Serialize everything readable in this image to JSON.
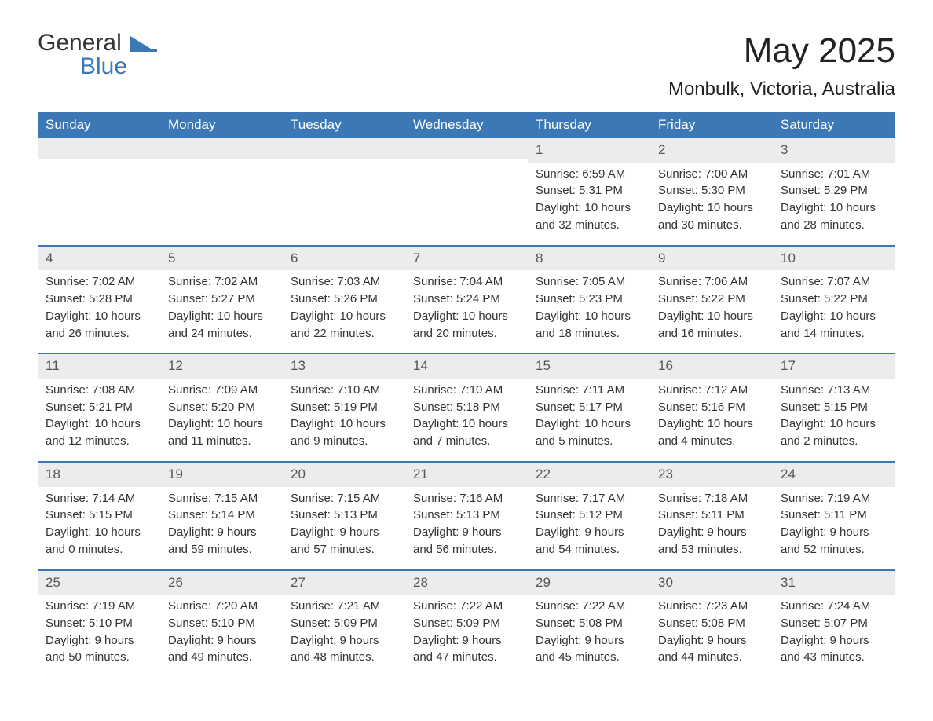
{
  "brand": {
    "word1": "General",
    "word2": "Blue"
  },
  "title": "May 2025",
  "location": "Monbulk, Victoria, Australia",
  "colors": {
    "header_bg": "#3b78b5",
    "header_text": "#ffffff",
    "daynum_bg": "#ececec",
    "text": "#333333",
    "rule": "#3b78b5",
    "page_bg": "#ffffff"
  },
  "typography": {
    "title_fontsize": 44,
    "location_fontsize": 24,
    "dow_fontsize": 17,
    "body_fontsize": 15
  },
  "layout": {
    "columns": 7,
    "rows": 5
  },
  "dow": [
    "Sunday",
    "Monday",
    "Tuesday",
    "Wednesday",
    "Thursday",
    "Friday",
    "Saturday"
  ],
  "labels": {
    "sunrise": "Sunrise:",
    "sunset": "Sunset:",
    "daylight": "Daylight:"
  },
  "weeks": [
    [
      {
        "empty": true
      },
      {
        "empty": true
      },
      {
        "empty": true
      },
      {
        "empty": true
      },
      {
        "n": "1",
        "sunrise": "6:59 AM",
        "sunset": "5:31 PM",
        "daylight": "10 hours and 32 minutes."
      },
      {
        "n": "2",
        "sunrise": "7:00 AM",
        "sunset": "5:30 PM",
        "daylight": "10 hours and 30 minutes."
      },
      {
        "n": "3",
        "sunrise": "7:01 AM",
        "sunset": "5:29 PM",
        "daylight": "10 hours and 28 minutes."
      }
    ],
    [
      {
        "n": "4",
        "sunrise": "7:02 AM",
        "sunset": "5:28 PM",
        "daylight": "10 hours and 26 minutes."
      },
      {
        "n": "5",
        "sunrise": "7:02 AM",
        "sunset": "5:27 PM",
        "daylight": "10 hours and 24 minutes."
      },
      {
        "n": "6",
        "sunrise": "7:03 AM",
        "sunset": "5:26 PM",
        "daylight": "10 hours and 22 minutes."
      },
      {
        "n": "7",
        "sunrise": "7:04 AM",
        "sunset": "5:24 PM",
        "daylight": "10 hours and 20 minutes."
      },
      {
        "n": "8",
        "sunrise": "7:05 AM",
        "sunset": "5:23 PM",
        "daylight": "10 hours and 18 minutes."
      },
      {
        "n": "9",
        "sunrise": "7:06 AM",
        "sunset": "5:22 PM",
        "daylight": "10 hours and 16 minutes."
      },
      {
        "n": "10",
        "sunrise": "7:07 AM",
        "sunset": "5:22 PM",
        "daylight": "10 hours and 14 minutes."
      }
    ],
    [
      {
        "n": "11",
        "sunrise": "7:08 AM",
        "sunset": "5:21 PM",
        "daylight": "10 hours and 12 minutes."
      },
      {
        "n": "12",
        "sunrise": "7:09 AM",
        "sunset": "5:20 PM",
        "daylight": "10 hours and 11 minutes."
      },
      {
        "n": "13",
        "sunrise": "7:10 AM",
        "sunset": "5:19 PM",
        "daylight": "10 hours and 9 minutes."
      },
      {
        "n": "14",
        "sunrise": "7:10 AM",
        "sunset": "5:18 PM",
        "daylight": "10 hours and 7 minutes."
      },
      {
        "n": "15",
        "sunrise": "7:11 AM",
        "sunset": "5:17 PM",
        "daylight": "10 hours and 5 minutes."
      },
      {
        "n": "16",
        "sunrise": "7:12 AM",
        "sunset": "5:16 PM",
        "daylight": "10 hours and 4 minutes."
      },
      {
        "n": "17",
        "sunrise": "7:13 AM",
        "sunset": "5:15 PM",
        "daylight": "10 hours and 2 minutes."
      }
    ],
    [
      {
        "n": "18",
        "sunrise": "7:14 AM",
        "sunset": "5:15 PM",
        "daylight": "10 hours and 0 minutes."
      },
      {
        "n": "19",
        "sunrise": "7:15 AM",
        "sunset": "5:14 PM",
        "daylight": "9 hours and 59 minutes."
      },
      {
        "n": "20",
        "sunrise": "7:15 AM",
        "sunset": "5:13 PM",
        "daylight": "9 hours and 57 minutes."
      },
      {
        "n": "21",
        "sunrise": "7:16 AM",
        "sunset": "5:13 PM",
        "daylight": "9 hours and 56 minutes."
      },
      {
        "n": "22",
        "sunrise": "7:17 AM",
        "sunset": "5:12 PM",
        "daylight": "9 hours and 54 minutes."
      },
      {
        "n": "23",
        "sunrise": "7:18 AM",
        "sunset": "5:11 PM",
        "daylight": "9 hours and 53 minutes."
      },
      {
        "n": "24",
        "sunrise": "7:19 AM",
        "sunset": "5:11 PM",
        "daylight": "9 hours and 52 minutes."
      }
    ],
    [
      {
        "n": "25",
        "sunrise": "7:19 AM",
        "sunset": "5:10 PM",
        "daylight": "9 hours and 50 minutes."
      },
      {
        "n": "26",
        "sunrise": "7:20 AM",
        "sunset": "5:10 PM",
        "daylight": "9 hours and 49 minutes."
      },
      {
        "n": "27",
        "sunrise": "7:21 AM",
        "sunset": "5:09 PM",
        "daylight": "9 hours and 48 minutes."
      },
      {
        "n": "28",
        "sunrise": "7:22 AM",
        "sunset": "5:09 PM",
        "daylight": "9 hours and 47 minutes."
      },
      {
        "n": "29",
        "sunrise": "7:22 AM",
        "sunset": "5:08 PM",
        "daylight": "9 hours and 45 minutes."
      },
      {
        "n": "30",
        "sunrise": "7:23 AM",
        "sunset": "5:08 PM",
        "daylight": "9 hours and 44 minutes."
      },
      {
        "n": "31",
        "sunrise": "7:24 AM",
        "sunset": "5:07 PM",
        "daylight": "9 hours and 43 minutes."
      }
    ]
  ]
}
